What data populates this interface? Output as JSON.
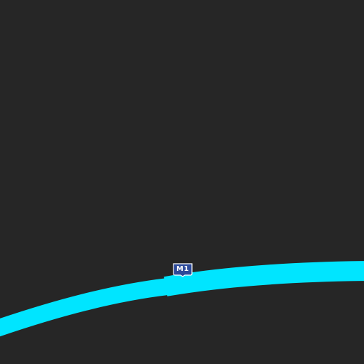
{
  "map": {
    "background_color": "#262626",
    "road": {
      "type": "motorway",
      "color": "#00e5ff"
    },
    "shield": {
      "label": "M1",
      "fill_color": "#2d4a9a",
      "border_color": "#ffffff"
    }
  }
}
